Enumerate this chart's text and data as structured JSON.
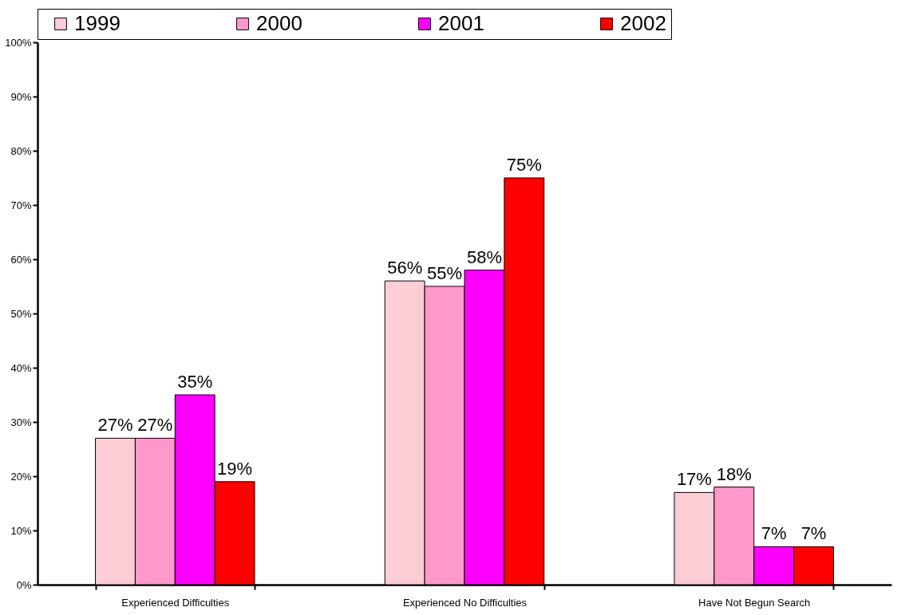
{
  "chart_data": {
    "type": "bar",
    "categories": [
      "Experienced Difficulties",
      "Experienced No Difficulties",
      "Have Not Begun Search"
    ],
    "series": [
      {
        "name": "1999",
        "color": "#fccdd5",
        "values": [
          27,
          56,
          17
        ]
      },
      {
        "name": "2000",
        "color": "#ff99cc",
        "values": [
          27,
          55,
          18
        ]
      },
      {
        "name": "2001",
        "color": "#ff00ff",
        "values": [
          35,
          58,
          7
        ]
      },
      {
        "name": "2002",
        "color": "#ff0000",
        "values": [
          19,
          75,
          7
        ]
      }
    ],
    "ylim": [
      0,
      100
    ],
    "yticks": [
      {
        "value": 0,
        "label": "0%"
      },
      {
        "value": 10,
        "label": "10%"
      },
      {
        "value": 20,
        "label": "20%"
      },
      {
        "value": 30,
        "label": "30%"
      },
      {
        "value": 40,
        "label": "40%"
      },
      {
        "value": 50,
        "label": "50%"
      },
      {
        "value": 60,
        "label": "60%"
      },
      {
        "value": 70,
        "label": "70%"
      },
      {
        "value": 80,
        "label": "80%"
      },
      {
        "value": 90,
        "label": "90%"
      },
      {
        "value": 100,
        "label": "100%"
      }
    ],
    "value_labels": [
      [
        "27%",
        "56%",
        "17%"
      ],
      [
        "27%",
        "55%",
        "18%"
      ],
      [
        "35%",
        "58%",
        "7%"
      ],
      [
        "19%",
        "75%",
        "7%"
      ]
    ],
    "grid": false,
    "legend": "top"
  }
}
